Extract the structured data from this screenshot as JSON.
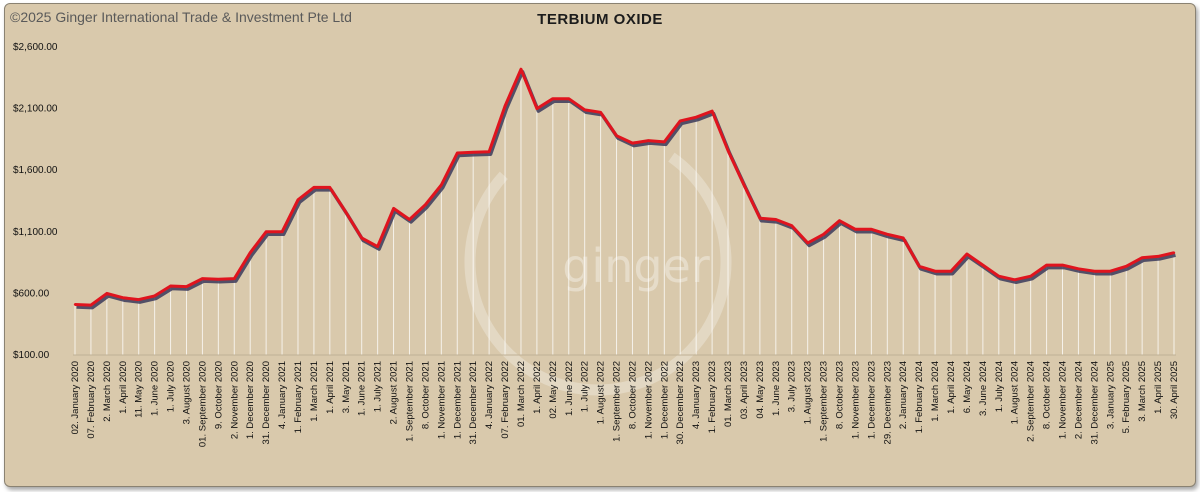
{
  "copyright": "©2025 Ginger International Trade & Investment Pte Ltd",
  "watermark": "ginger",
  "colors": {
    "background": "#d9c9ac",
    "line": "#e0141e",
    "shadow": "#3a3a5a",
    "drop": "#ffffff"
  },
  "chart_data": {
    "type": "line",
    "title": "TERBIUM OXIDE",
    "xlabel": "",
    "ylabel": "",
    "ylim": [
      100,
      2600
    ],
    "yticks": [
      100,
      600,
      1100,
      1600,
      2100,
      2600
    ],
    "ytick_labels": [
      "$100.00",
      "$600.00",
      "$1,100.00",
      "$1,600.00",
      "$2,100.00",
      "$2,600.00"
    ],
    "grid": false,
    "categories": [
      "02. January 2020",
      "07. February 2020",
      "2. March 2020",
      "1. April 2020",
      "11. May 2020",
      "1. June 2020",
      "1. July 2020",
      "3. August 2020",
      "01. September 2020",
      "9. October 2020",
      "2. November 2020",
      "1. December 2020",
      "31. December 2020",
      "4. January 2021",
      "1. February 2021",
      "1. March 2021",
      "1. April 2021",
      "3. May 2021",
      "1. June 2021",
      "1. July 2021",
      "2. August 2021",
      "1. September 2021",
      "8. October 2021",
      "1. November 2021",
      "1. December 2021",
      "31. December 2021",
      "4. January 2022",
      "07. February 2022",
      "01. March 2022",
      "1. April 2022",
      "02. May 2022",
      "1. June 2022",
      "1. July 2022",
      "1. August 2022",
      "1. September 2022",
      "8. October 2022",
      "1. November 2022",
      "1. December 2022",
      "30. December 2022",
      "4. January 2023",
      "1. February 2023",
      "01. March 2023",
      "03. April 2023",
      "04. May 2023",
      "1. June 2023",
      "3. July 2023",
      "1. August 2023",
      "1. September 2023",
      "8. October 2023",
      "1. November 2023",
      "1. December 2023",
      "29. December 2023",
      "2. January 2024",
      "1. February 2024",
      "1. March 2024",
      "1. April 2024",
      "6. May 2024",
      "3. June 2024",
      "1. July 2024",
      "1. August 2024",
      "2. September 2024",
      "8. October 2024",
      "1. November 2024",
      "2. December 2024",
      "31. December 2024",
      "3. January 2025",
      "5. February 2025",
      "3. March 2025",
      "1. April 2025",
      "30. April 2025"
    ],
    "series": [
      {
        "values": [
          510,
          505,
          600,
          565,
          550,
          580,
          660,
          655,
          720,
          715,
          720,
          930,
          1100,
          1100,
          1360,
          1460,
          1460,
          1260,
          1050,
          980,
          1290,
          1200,
          1320,
          1480,
          1740,
          1745,
          1750,
          2120,
          2420,
          2100,
          2180,
          2180,
          2090,
          2070,
          1880,
          1820,
          1840,
          1830,
          2000,
          2030,
          2080,
          1760,
          1480,
          1210,
          1200,
          1150,
          1010,
          1080,
          1190,
          1120,
          1120,
          1080,
          1050,
          820,
          780,
          780,
          920,
          830,
          740,
          710,
          740,
          830,
          830,
          800,
          780,
          780,
          820,
          890,
          900,
          930
        ]
      }
    ]
  }
}
